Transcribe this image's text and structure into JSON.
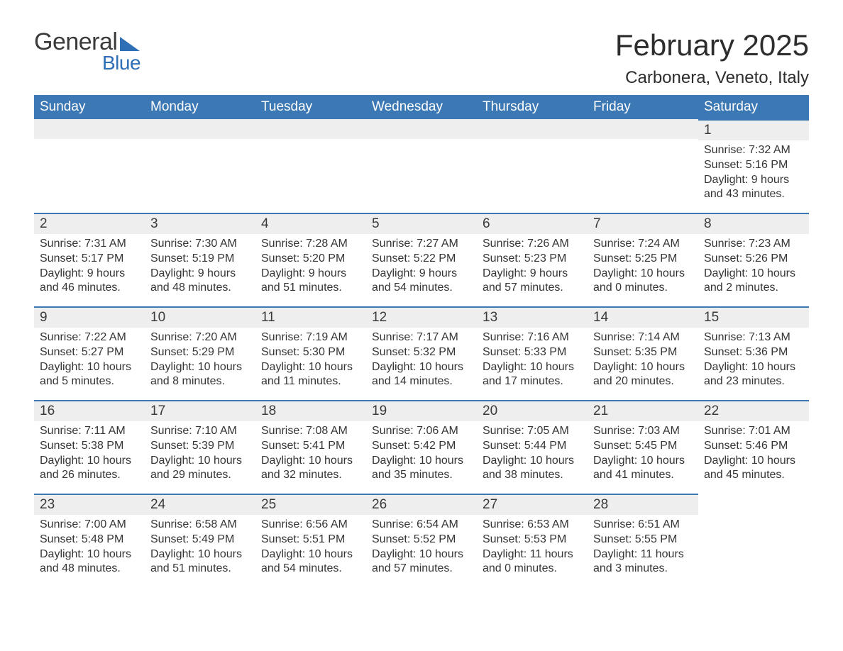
{
  "brand": {
    "word1": "General",
    "word2": "Blue",
    "accent_color": "#2f6fb5"
  },
  "title": "February 2025",
  "location": "Carbonera, Veneto, Italy",
  "colors": {
    "header_bg": "#3c78b4",
    "header_text": "#ffffff",
    "daybar_bg": "#eeeeee",
    "daybar_border": "#3c78b4",
    "body_text": "#353535",
    "page_bg": "#ffffff"
  },
  "typography": {
    "month_title_size_pt": 32,
    "location_size_pt": 18,
    "weekday_size_pt": 14,
    "daynum_size_pt": 14,
    "body_size_pt": 12
  },
  "layout": {
    "columns": 7,
    "rows": 5,
    "first_day_column": 6
  },
  "day_names": [
    "Sunday",
    "Monday",
    "Tuesday",
    "Wednesday",
    "Thursday",
    "Friday",
    "Saturday"
  ],
  "labels": {
    "sunrise": "Sunrise",
    "sunset": "Sunset",
    "daylight": "Daylight"
  },
  "days": [
    {
      "n": 1,
      "sunrise": "7:32 AM",
      "sunset": "5:16 PM",
      "daylight": "9 hours and 43 minutes."
    },
    {
      "n": 2,
      "sunrise": "7:31 AM",
      "sunset": "5:17 PM",
      "daylight": "9 hours and 46 minutes."
    },
    {
      "n": 3,
      "sunrise": "7:30 AM",
      "sunset": "5:19 PM",
      "daylight": "9 hours and 48 minutes."
    },
    {
      "n": 4,
      "sunrise": "7:28 AM",
      "sunset": "5:20 PM",
      "daylight": "9 hours and 51 minutes."
    },
    {
      "n": 5,
      "sunrise": "7:27 AM",
      "sunset": "5:22 PM",
      "daylight": "9 hours and 54 minutes."
    },
    {
      "n": 6,
      "sunrise": "7:26 AM",
      "sunset": "5:23 PM",
      "daylight": "9 hours and 57 minutes."
    },
    {
      "n": 7,
      "sunrise": "7:24 AM",
      "sunset": "5:25 PM",
      "daylight": "10 hours and 0 minutes."
    },
    {
      "n": 8,
      "sunrise": "7:23 AM",
      "sunset": "5:26 PM",
      "daylight": "10 hours and 2 minutes."
    },
    {
      "n": 9,
      "sunrise": "7:22 AM",
      "sunset": "5:27 PM",
      "daylight": "10 hours and 5 minutes."
    },
    {
      "n": 10,
      "sunrise": "7:20 AM",
      "sunset": "5:29 PM",
      "daylight": "10 hours and 8 minutes."
    },
    {
      "n": 11,
      "sunrise": "7:19 AM",
      "sunset": "5:30 PM",
      "daylight": "10 hours and 11 minutes."
    },
    {
      "n": 12,
      "sunrise": "7:17 AM",
      "sunset": "5:32 PM",
      "daylight": "10 hours and 14 minutes."
    },
    {
      "n": 13,
      "sunrise": "7:16 AM",
      "sunset": "5:33 PM",
      "daylight": "10 hours and 17 minutes."
    },
    {
      "n": 14,
      "sunrise": "7:14 AM",
      "sunset": "5:35 PM",
      "daylight": "10 hours and 20 minutes."
    },
    {
      "n": 15,
      "sunrise": "7:13 AM",
      "sunset": "5:36 PM",
      "daylight": "10 hours and 23 minutes."
    },
    {
      "n": 16,
      "sunrise": "7:11 AM",
      "sunset": "5:38 PM",
      "daylight": "10 hours and 26 minutes."
    },
    {
      "n": 17,
      "sunrise": "7:10 AM",
      "sunset": "5:39 PM",
      "daylight": "10 hours and 29 minutes."
    },
    {
      "n": 18,
      "sunrise": "7:08 AM",
      "sunset": "5:41 PM",
      "daylight": "10 hours and 32 minutes."
    },
    {
      "n": 19,
      "sunrise": "7:06 AM",
      "sunset": "5:42 PM",
      "daylight": "10 hours and 35 minutes."
    },
    {
      "n": 20,
      "sunrise": "7:05 AM",
      "sunset": "5:44 PM",
      "daylight": "10 hours and 38 minutes."
    },
    {
      "n": 21,
      "sunrise": "7:03 AM",
      "sunset": "5:45 PM",
      "daylight": "10 hours and 41 minutes."
    },
    {
      "n": 22,
      "sunrise": "7:01 AM",
      "sunset": "5:46 PM",
      "daylight": "10 hours and 45 minutes."
    },
    {
      "n": 23,
      "sunrise": "7:00 AM",
      "sunset": "5:48 PM",
      "daylight": "10 hours and 48 minutes."
    },
    {
      "n": 24,
      "sunrise": "6:58 AM",
      "sunset": "5:49 PM",
      "daylight": "10 hours and 51 minutes."
    },
    {
      "n": 25,
      "sunrise": "6:56 AM",
      "sunset": "5:51 PM",
      "daylight": "10 hours and 54 minutes."
    },
    {
      "n": 26,
      "sunrise": "6:54 AM",
      "sunset": "5:52 PM",
      "daylight": "10 hours and 57 minutes."
    },
    {
      "n": 27,
      "sunrise": "6:53 AM",
      "sunset": "5:53 PM",
      "daylight": "11 hours and 0 minutes."
    },
    {
      "n": 28,
      "sunrise": "6:51 AM",
      "sunset": "5:55 PM",
      "daylight": "11 hours and 3 minutes."
    }
  ]
}
